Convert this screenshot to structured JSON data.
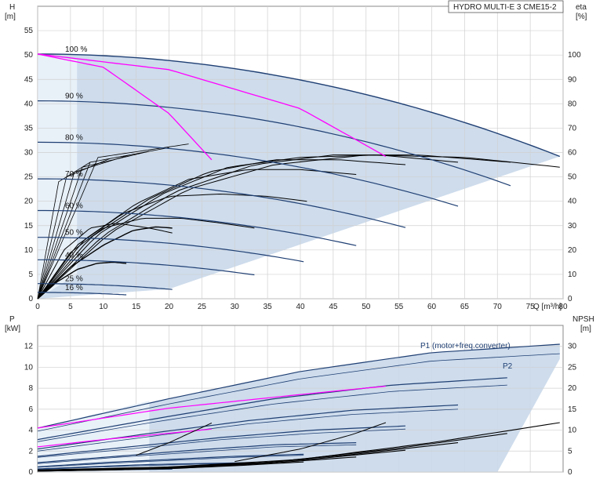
{
  "chart_data": [
    {
      "type": "line",
      "title": "HYDRO MULTI-E 3 CME15-2",
      "ylabel": "H",
      "yunit": "[m]",
      "y2label": "eta",
      "y2unit": "[%]",
      "xlabel": "Q [m³/h]",
      "xlim": [
        0,
        80
      ],
      "ylim": [
        0,
        60
      ],
      "y2lim": [
        0,
        120
      ],
      "xticks": [
        0,
        5,
        10,
        15,
        20,
        25,
        30,
        35,
        40,
        45,
        50,
        55,
        60,
        65,
        70,
        75,
        80
      ],
      "yticks": [
        0,
        5,
        10,
        15,
        20,
        25,
        30,
        35,
        40,
        45,
        50,
        55
      ],
      "y2ticks": [
        0,
        10,
        20,
        30,
        40,
        50,
        60,
        70,
        80,
        90,
        100
      ],
      "grid": true,
      "colors": {
        "curve": "#1f3f73",
        "eff": "#000000",
        "system": "#ff00ff",
        "band": "#c9d8ea"
      },
      "speed_curves": [
        {
          "label": "100 %",
          "shutoff": 50.2,
          "qmax": 79.5,
          "hend": 29.2
        },
        {
          "label": "90 %",
          "shutoff": 40.6,
          "qmax": 72.0,
          "hend": 23.2
        },
        {
          "label": "80 %",
          "shutoff": 32.1,
          "qmax": 64.0,
          "hend": 19.0
        },
        {
          "label": "70 %",
          "shutoff": 24.6,
          "qmax": 56.0,
          "hend": 14.6
        },
        {
          "label": "60 %",
          "shutoff": 18.1,
          "qmax": 48.5,
          "hend": 10.9
        },
        {
          "label": "50 %",
          "shutoff": 12.6,
          "qmax": 40.5,
          "hend": 7.6
        },
        {
          "label": "40 %",
          "shutoff": 8.0,
          "qmax": 33.0,
          "hend": 4.9
        },
        {
          "label": "25 %",
          "shutoff": 3.1,
          "qmax": 20.5,
          "hend": 1.9
        },
        {
          "label": "16 %",
          "shutoff": 1.3,
          "qmax": 13.5,
          "hend": 0.8
        }
      ],
      "system_curves": [
        {
          "q": [
            0,
            10,
            20,
            26.5
          ],
          "h": [
            50.2,
            47.5,
            38.0,
            28.5
          ]
        },
        {
          "q": [
            0,
            20,
            40,
            53.0
          ],
          "h": [
            50.2,
            47.0,
            39.0,
            29.2
          ]
        }
      ],
      "efficiency_curves": [
        {
          "q": [
            0,
            4,
            8,
            12,
            17,
            20.5
          ],
          "eta": [
            0,
            20,
            29,
            31,
            29,
            27
          ]
        },
        {
          "q": [
            0,
            5,
            10,
            16,
            22,
            28,
            33
          ],
          "eta": [
            0,
            19,
            29,
            33,
            33,
            31,
            29
          ]
        },
        {
          "q": [
            0,
            6,
            13,
            20,
            28,
            35,
            41
          ],
          "eta": [
            0,
            22,
            35,
            42,
            43,
            42,
            40
          ]
        },
        {
          "q": [
            0,
            7,
            15,
            23,
            32,
            40,
            48.5
          ],
          "eta": [
            0,
            24,
            39,
            49,
            53,
            53,
            51
          ]
        },
        {
          "q": [
            0,
            8,
            17,
            26,
            36,
            46,
            56
          ],
          "eta": [
            0,
            25,
            41,
            52,
            57,
            57,
            55
          ]
        },
        {
          "q": [
            0,
            9,
            19,
            29,
            40,
            52,
            64
          ],
          "eta": [
            0,
            26,
            43,
            54,
            58,
            59,
            56
          ]
        },
        {
          "q": [
            0,
            10,
            21,
            33,
            45,
            58,
            72
          ],
          "eta": [
            0,
            26,
            44,
            55,
            59,
            59,
            56
          ]
        },
        {
          "q": [
            0,
            11,
            23,
            36,
            50,
            65,
            79.5
          ],
          "eta": [
            0,
            27,
            45,
            55,
            59,
            58,
            54
          ]
        }
      ],
      "small_curves": [
        {
          "q": [
            0,
            3,
            6,
            9,
            11.5,
            13.5
          ],
          "eta": [
            0,
            7,
            12,
            14.5,
            15,
            14.5
          ]
        },
        {
          "q": [
            0,
            5,
            10,
            14.5,
            18,
            20.5
          ],
          "eta": [
            0,
            13,
            22,
            28,
            29.5,
            29
          ]
        }
      ]
    },
    {
      "type": "line",
      "ylabel": "P",
      "yunit": "[kW]",
      "y2label": "NPSH",
      "y2unit": "[m]",
      "xlim": [
        0,
        80
      ],
      "ylim": [
        0,
        14
      ],
      "y2lim": [
        0,
        35
      ],
      "yticks": [
        0,
        2,
        4,
        6,
        8,
        10,
        12
      ],
      "y2ticks": [
        0,
        5,
        10,
        15,
        20,
        25,
        30
      ],
      "grid": true,
      "series_labels": [
        "P1 (motor+freq.converter)",
        "P2"
      ],
      "power_curves": [
        {
          "q": [
            0,
            20,
            40,
            60,
            79.5
          ],
          "p1": [
            4.2,
            7.0,
            9.6,
            11.4,
            12.2
          ],
          "p2": [
            3.9,
            6.5,
            8.9,
            10.6,
            11.3
          ]
        },
        {
          "q": [
            0,
            18,
            36,
            54,
            71.5
          ],
          "p1": [
            3.1,
            5.1,
            7.0,
            8.3,
            9.0
          ],
          "p2": [
            2.9,
            4.8,
            6.5,
            7.7,
            8.3
          ]
        },
        {
          "q": [
            0,
            16,
            32,
            48,
            64
          ],
          "p1": [
            2.2,
            3.6,
            4.9,
            5.9,
            6.4
          ],
          "p2": [
            2.0,
            3.3,
            4.6,
            5.5,
            6.0
          ]
        },
        {
          "q": [
            0,
            14,
            28,
            42,
            56
          ],
          "p1": [
            1.5,
            2.4,
            3.3,
            4.0,
            4.4
          ],
          "p2": [
            1.4,
            2.2,
            3.1,
            3.7,
            4.1
          ]
        },
        {
          "q": [
            0,
            12,
            24,
            36,
            48.5
          ],
          "p1": [
            0.9,
            1.5,
            2.1,
            2.6,
            2.8
          ],
          "p2": [
            0.8,
            1.4,
            1.9,
            2.4,
            2.6
          ]
        },
        {
          "q": [
            0,
            10,
            20,
            30,
            40.5
          ],
          "p1": [
            0.5,
            0.9,
            1.2,
            1.5,
            1.7
          ],
          "p2": [
            0.45,
            0.8,
            1.1,
            1.4,
            1.6
          ]
        },
        {
          "q": [
            0,
            8,
            16,
            24,
            33
          ],
          "p1": [
            0.3,
            0.5,
            0.7,
            0.8,
            0.9
          ],
          "p2": [
            0.25,
            0.45,
            0.6,
            0.75,
            0.85
          ]
        },
        {
          "q": [
            0,
            10,
            20.5
          ],
          "p1": [
            0.1,
            0.2,
            0.3
          ],
          "p2": [
            0.08,
            0.18,
            0.27
          ]
        }
      ],
      "power_system": [
        {
          "q": [
            0,
            10,
            20,
            26.5
          ],
          "p": [
            2.4,
            3.1,
            3.7,
            4.1
          ]
        },
        {
          "q": [
            0,
            20,
            40,
            53.0
          ],
          "p": [
            4.2,
            6.1,
            7.4,
            8.2
          ]
        }
      ],
      "npsh_curves": [
        {
          "q": [
            0,
            20,
            40,
            60,
            79.5
          ],
          "npsh": [
            0.5,
            1.2,
            3.0,
            7.0,
            11.8
          ]
        },
        {
          "q": [
            0,
            18,
            36,
            54,
            71.5
          ],
          "npsh": [
            0.4,
            1.0,
            2.4,
            5.5,
            9.2
          ]
        },
        {
          "q": [
            0,
            16,
            32,
            48,
            64
          ],
          "npsh": [
            0.35,
            0.8,
            1.9,
            4.2,
            7.0
          ]
        },
        {
          "q": [
            0,
            14,
            28,
            42,
            56
          ],
          "npsh": [
            0.3,
            0.7,
            1.5,
            3.1,
            5.2
          ]
        },
        {
          "q": [
            0,
            12,
            24,
            36,
            48.5
          ],
          "npsh": [
            0.25,
            0.55,
            1.1,
            2.2,
            3.6
          ]
        },
        {
          "q": [
            0,
            10,
            20,
            30,
            40.5
          ],
          "npsh": [
            0.2,
            0.45,
            0.8,
            1.5,
            2.4
          ]
        }
      ],
      "npsh_system": [
        {
          "q": [
            15,
            20,
            26.5
          ],
          "npsh": [
            4.0,
            7.0,
            11.7
          ]
        },
        {
          "q": [
            30,
            40,
            48,
            53.0
          ],
          "npsh": [
            2.5,
            5.5,
            9.0,
            11.8
          ]
        }
      ]
    }
  ]
}
